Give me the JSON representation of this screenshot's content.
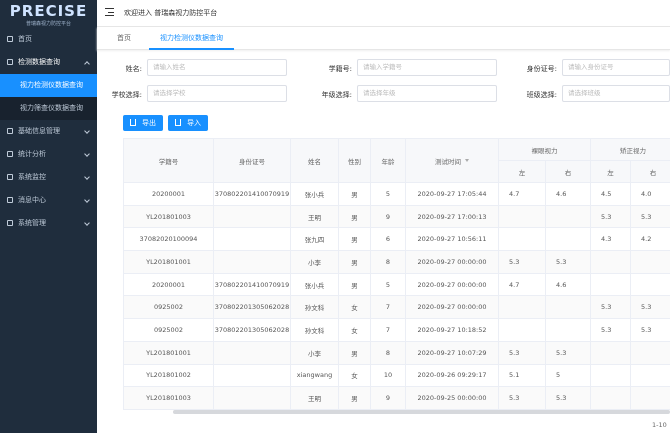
{
  "sidebar": {
    "logo": "PRECISE",
    "logo_subtitle": "普瑞森视力防控平台",
    "menu": [
      {
        "label": "首页"
      },
      {
        "label": "检测数据查询",
        "children": [
          "视力检测仪数据查询",
          "视力筛查仪数据查询"
        ]
      },
      {
        "label": "基础信息管理"
      },
      {
        "label": "统计分析"
      },
      {
        "label": "系统监控"
      },
      {
        "label": "消息中心"
      },
      {
        "label": "系统管理"
      }
    ]
  },
  "header": {
    "welcome": "欢迎进入 普瑞森视力防控平台"
  },
  "tabs": [
    "首页",
    "视力检测仪数据查询"
  ],
  "form": {
    "fields": [
      {
        "label": "姓名:",
        "placeholder": "请输入姓名"
      },
      {
        "label": "学籍号:",
        "placeholder": "请输入学籍号"
      },
      {
        "label": "身份证号:",
        "placeholder": "请输入身份证号"
      },
      {
        "label": "学校选择:",
        "placeholder": "请选择学校"
      },
      {
        "label": "年级选择:",
        "placeholder": "请选择年级"
      },
      {
        "label": "班级选择:",
        "placeholder": "请选择班级"
      }
    ],
    "buttons": [
      "导出",
      "导入"
    ]
  },
  "table": {
    "columns": [
      "学籍号",
      "身份证号",
      "姓名",
      "性别",
      "年龄",
      "测试时间"
    ],
    "groups": [
      {
        "label": "裸眼视力",
        "sub": [
          "左",
          "右"
        ]
      },
      {
        "label": "矫正视力",
        "sub": [
          "左",
          "右"
        ]
      }
    ],
    "rows": [
      [
        "20200001",
        "370802201410070919",
        "张小兵",
        "男",
        "5",
        "2020-09-27 17:05:44",
        "4.7",
        "4.6",
        "4.5",
        "4.0"
      ],
      [
        "YL201801003",
        null,
        "王明",
        "男",
        "9",
        "2020-09-27 17:00:13",
        null,
        null,
        "5.3",
        "5.3"
      ],
      [
        "37082020100094",
        null,
        "张九四",
        "男",
        "6",
        "2020-09-27 10:56:11",
        null,
        null,
        "4.3",
        "4.2"
      ],
      [
        "YL201801001",
        null,
        "小李",
        "男",
        "8",
        "2020-09-27 00:00:00",
        "5.3",
        "5.3",
        null,
        null
      ],
      [
        "20200001",
        "370802201410070919",
        "张小兵",
        "男",
        "5",
        "2020-09-27 00:00:00",
        "4.7",
        "4.6",
        null,
        null
      ],
      [
        "0925002",
        "370802201305062028",
        "孙文科",
        "女",
        "7",
        "2020-09-27 00:00:00",
        null,
        null,
        "5.3",
        "5.3"
      ],
      [
        "0925002",
        "370802201305062028",
        "孙文科",
        "女",
        "7",
        "2020-09-27 10:18:52",
        null,
        null,
        "5.3",
        "5.3"
      ],
      [
        "YL201801001",
        null,
        "小李",
        "男",
        "8",
        "2020-09-27 10:07:29",
        "5.3",
        "5.3",
        null,
        null
      ],
      [
        "YL201801002",
        null,
        "xiangwang",
        "女",
        "10",
        "2020-09-26 09:29:17",
        "5.1",
        "5",
        null,
        null
      ],
      [
        "YL201801003",
        null,
        "王明",
        "男",
        "9",
        "2020-09-25 00:00:00",
        "5.3",
        "5.3",
        null,
        null
      ]
    ]
  },
  "pagination": {
    "range": "1-10"
  }
}
